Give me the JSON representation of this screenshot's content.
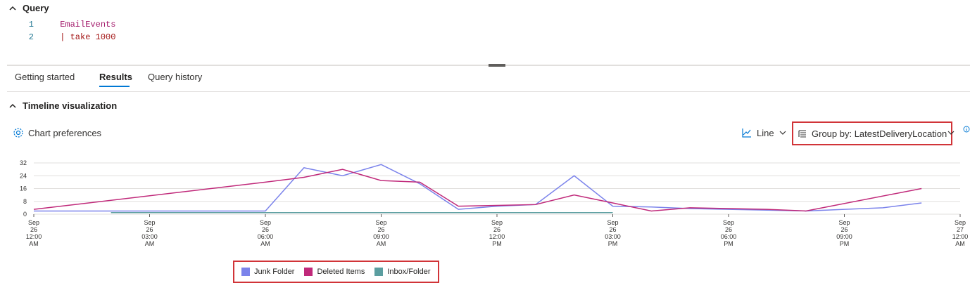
{
  "query": {
    "title": "Query",
    "lines": [
      {
        "num": "1",
        "text": "EmailEvents"
      },
      {
        "num": "2",
        "pipe": "|",
        "keyword": "take",
        "value": "1000"
      }
    ]
  },
  "tabs": [
    {
      "label": "Getting started"
    },
    {
      "label": "Results"
    },
    {
      "label": "Query history"
    }
  ],
  "timeline": {
    "title": "Timeline visualization",
    "chart_preferences": "Chart preferences",
    "chart_type": "Line",
    "group_by": "Group by: LatestDeliveryLocation"
  },
  "chart_data": {
    "type": "line",
    "ylim": [
      0,
      32
    ],
    "yticks": [
      0,
      8,
      16,
      24,
      32
    ],
    "xticks": [
      [
        "Sep",
        "26",
        "12:00",
        "AM"
      ],
      [
        "Sep",
        "26",
        "03:00",
        "AM"
      ],
      [
        "Sep",
        "26",
        "06:00",
        "AM"
      ],
      [
        "Sep",
        "26",
        "09:00",
        "AM"
      ],
      [
        "Sep",
        "26",
        "12:00",
        "PM"
      ],
      [
        "Sep",
        "26",
        "03:00",
        "PM"
      ],
      [
        "Sep",
        "26",
        "06:00",
        "PM"
      ],
      [
        "Sep",
        "26",
        "09:00",
        "PM"
      ],
      [
        "Sep",
        "27",
        "12:00",
        "AM"
      ]
    ],
    "x_unit": "hours",
    "series": [
      {
        "name": "Junk Folder",
        "color": "#7b83eb",
        "points": [
          [
            0,
            2
          ],
          [
            6,
            2
          ],
          [
            7,
            29
          ],
          [
            8,
            24
          ],
          [
            9,
            31
          ],
          [
            10,
            19
          ],
          [
            11,
            3
          ],
          [
            12,
            5
          ],
          [
            13,
            6
          ],
          [
            14,
            24
          ],
          [
            15,
            5
          ],
          [
            16,
            4.5
          ],
          [
            17,
            3.5
          ],
          [
            18,
            3
          ],
          [
            19,
            2.5
          ],
          [
            20,
            2
          ],
          [
            21,
            3
          ],
          [
            22,
            4
          ],
          [
            23,
            7
          ]
        ]
      },
      {
        "name": "Deleted Items",
        "color": "#c0297a",
        "points": [
          [
            0,
            3
          ],
          [
            6,
            20
          ],
          [
            7,
            23
          ],
          [
            8,
            28
          ],
          [
            9,
            21
          ],
          [
            10,
            20
          ],
          [
            11,
            5
          ],
          [
            12,
            5.5
          ],
          [
            13,
            6
          ],
          [
            14,
            12
          ],
          [
            15,
            7
          ],
          [
            16,
            2
          ],
          [
            17,
            4
          ],
          [
            18,
            3.5
          ],
          [
            19,
            3
          ],
          [
            20,
            2
          ],
          [
            23,
            16
          ]
        ]
      },
      {
        "name": "Inbox/Folder",
        "color": "#5b9ea0",
        "points": [
          [
            2,
            1
          ],
          [
            15,
            1
          ]
        ]
      }
    ]
  }
}
